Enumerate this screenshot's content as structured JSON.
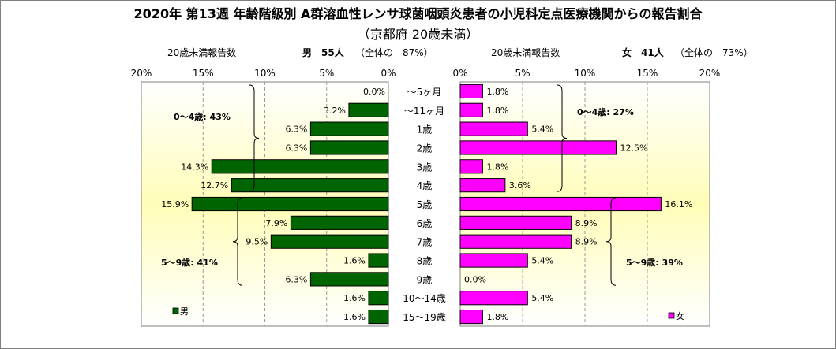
{
  "title": "2020年 第13週 年齢階級別 A群溶血性レンサ球菌咽頭炎患者の小児科定点医療機関からの報告割合",
  "subtitle": "（京都府 20歳未満）",
  "male_header": {
    "count_label": "20歳未満報告数",
    "sex_count": "男　55人",
    "share": "（全体の　87%）"
  },
  "female_header": {
    "count_label": "20歳未満報告数",
    "sex_count": "女　41人",
    "share": "（全体の　73%）"
  },
  "chart_data": {
    "type": "bar",
    "orientation": "horizontal-pyramid",
    "xlim": [
      0,
      20
    ],
    "ticks": [
      "20%",
      "15%",
      "10%",
      "5%",
      "0%"
    ],
    "ticks_right": [
      "0%",
      "5%",
      "10%",
      "15%",
      "20%"
    ],
    "tick_values": [
      20,
      15,
      10,
      5,
      0
    ],
    "tick_values_right": [
      0,
      5,
      10,
      15,
      20
    ],
    "categories": [
      "～5ヶ月",
      "～11ヶ月",
      "1歳",
      "2歳",
      "3歳",
      "4歳",
      "5歳",
      "6歳",
      "7歳",
      "8歳",
      "9歳",
      "10～14歳",
      "15～19歳"
    ],
    "series": [
      {
        "name": "男",
        "color": "#006400",
        "values": [
          0.0,
          3.2,
          6.3,
          6.3,
          14.3,
          12.7,
          15.9,
          7.9,
          9.5,
          1.6,
          6.3,
          1.6,
          1.6
        ],
        "labels": [
          "0.0%",
          "3.2%",
          "6.3%",
          "6.3%",
          "14.3%",
          "12.7%",
          "15.9%",
          "7.9%",
          "9.5%",
          "1.6%",
          "6.3%",
          "1.6%",
          "1.6%"
        ]
      },
      {
        "name": "女",
        "color": "#ff00ff",
        "values": [
          1.8,
          1.8,
          5.4,
          12.5,
          1.8,
          3.6,
          16.1,
          8.9,
          8.9,
          5.4,
          0.0,
          5.4,
          1.8
        ],
        "labels": [
          "1.8%",
          "1.8%",
          "5.4%",
          "12.5%",
          "1.8%",
          "3.6%",
          "16.1%",
          "8.9%",
          "8.9%",
          "5.4%",
          "0.0%",
          "5.4%",
          "1.8%"
        ]
      }
    ],
    "group_annotations": {
      "male_0_4": "0～4歳: 43%",
      "male_5_9": "5～9歳: 41%",
      "female_0_4": "0～4歳: 27%",
      "female_5_9": "5～9歳: 39%"
    },
    "legend": {
      "male": "男",
      "female": "女"
    },
    "grid": true
  }
}
